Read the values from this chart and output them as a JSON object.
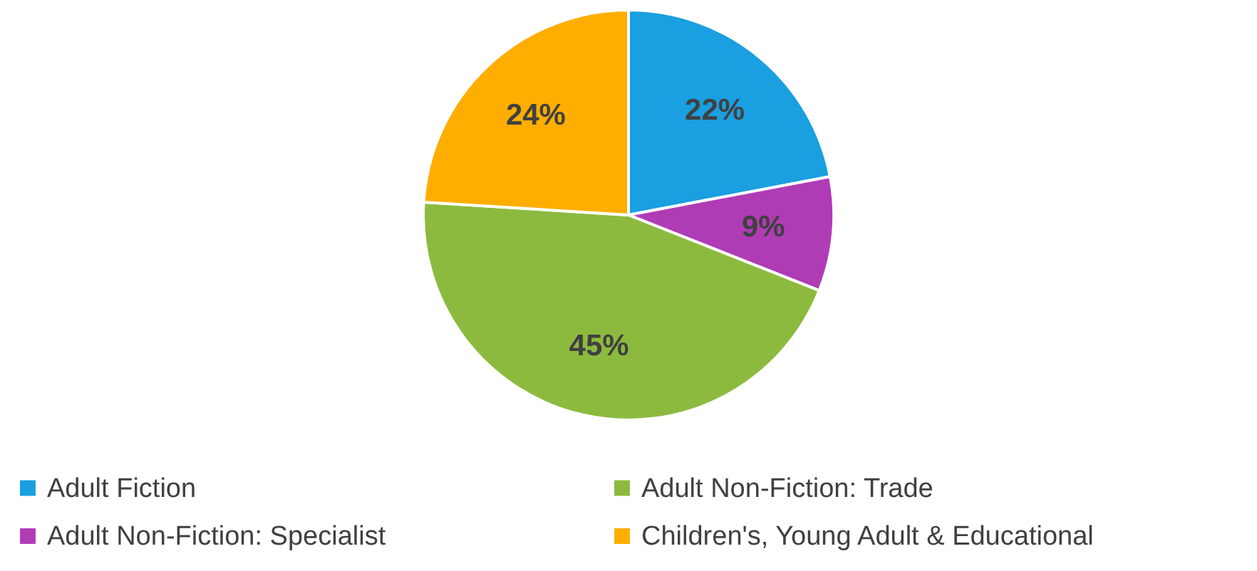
{
  "chart_data": {
    "type": "pie",
    "categories": [
      "Adult Fiction",
      "Adult Non-Fiction: Specialist",
      "Adult Non-Fiction: Trade",
      "Children's, Young Adult & Educational"
    ],
    "values": [
      22,
      9,
      45,
      24
    ],
    "colors": [
      "#1a9fe0",
      "#b03cb5",
      "#8cba3e",
      "#ffae00"
    ],
    "value_labels": [
      "22%",
      "9%",
      "45%",
      "24%"
    ],
    "legend": "bottom"
  }
}
